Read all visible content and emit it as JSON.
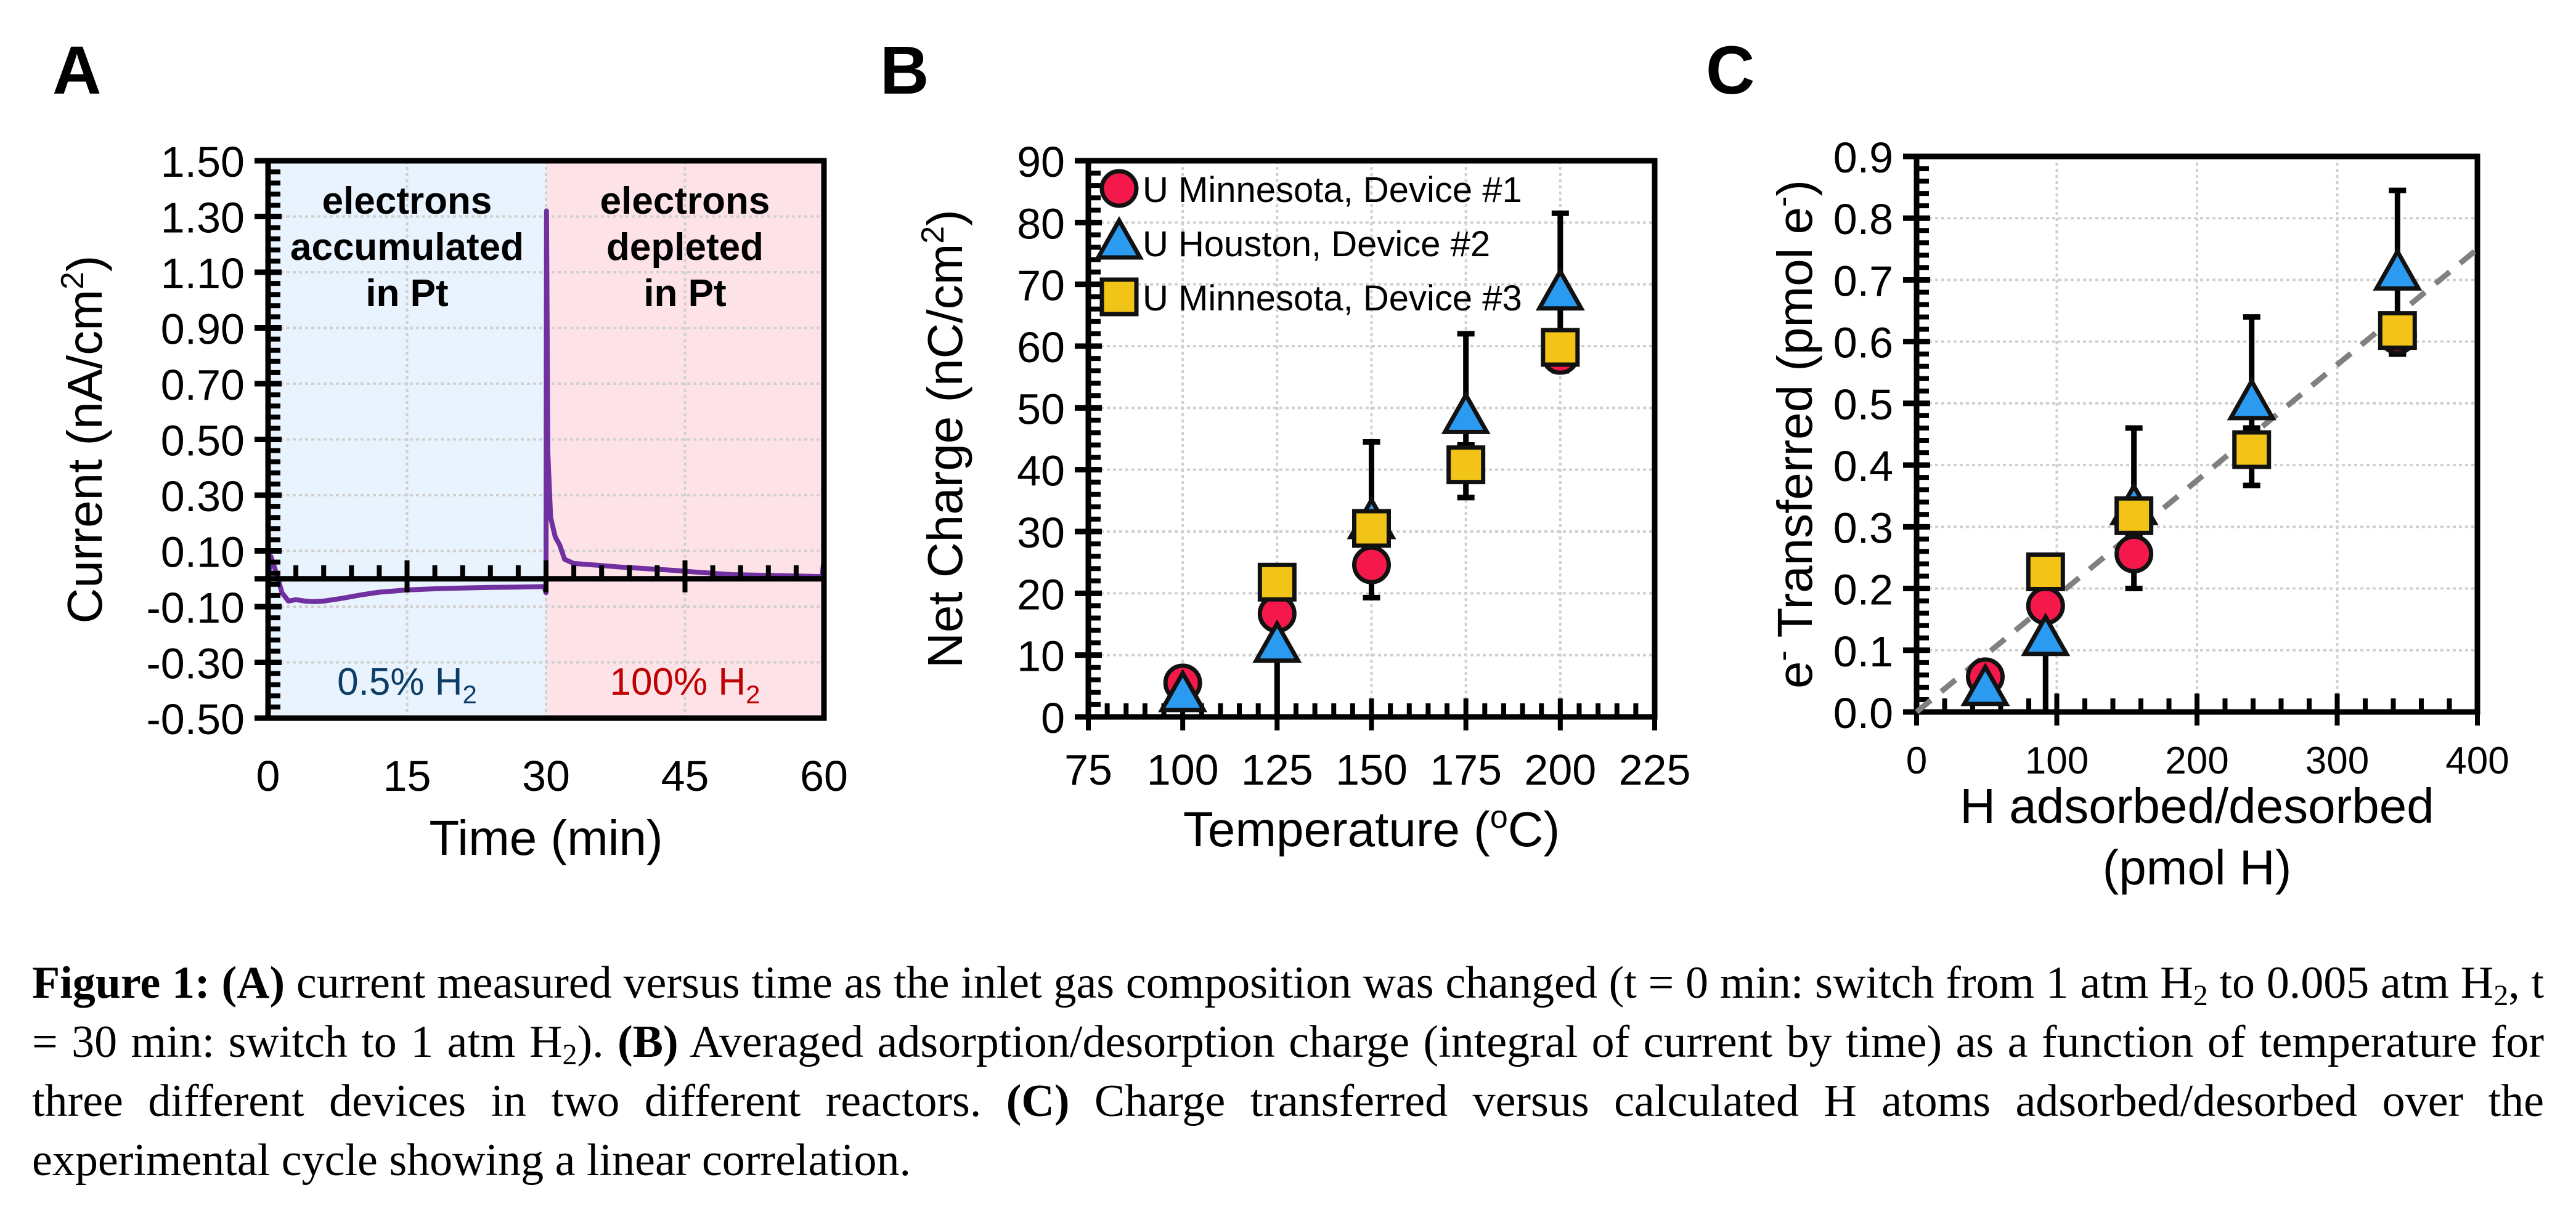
{
  "colors": {
    "device1": "#F5184A",
    "device2": "#2B9BF2",
    "device3": "#F2C418",
    "trace": "#7030A0",
    "region_low_h2": "#E8F3FD",
    "region_high_h2": "#FDE3E8",
    "label_low_h2": "#0B3D66",
    "label_high_h2": "#C00000",
    "fit_line": "#808080",
    "grid": "#D0D0D0"
  },
  "panels": {
    "a": {
      "letter": "A"
    },
    "b": {
      "letter": "B"
    },
    "c": {
      "letter": "C"
    }
  },
  "chart_data": [
    {
      "id": "A",
      "type": "line",
      "title": "",
      "xlabel": "Time (min)",
      "ylabel": "Current (nA/cm²)",
      "ylabel_main": "Current (nA/cm",
      "ylabel_sup": "2",
      "ylabel_end": ")",
      "xlim": [
        0,
        60
      ],
      "ylim": [
        -0.5,
        1.5
      ],
      "xticks": [
        0,
        15,
        30,
        45,
        60
      ],
      "xtick_labels": [
        "0",
        "15",
        "30",
        "45",
        "60"
      ],
      "yticks": [
        -0.5,
        -0.3,
        -0.1,
        0.1,
        0.3,
        0.5,
        0.7,
        0.9,
        1.1,
        1.3,
        1.5
      ],
      "ytick_labels": [
        "-0.50",
        "-0.30",
        "-0.10",
        "0.10",
        "0.30",
        "0.50",
        "0.70",
        "0.90",
        "1.10",
        "1.30",
        "1.50"
      ],
      "grid": true,
      "regions": [
        {
          "x": [
            0,
            30
          ],
          "top_label": [
            "electrons",
            "accumulated",
            "in Pt"
          ],
          "bottom_label": "0.5% H",
          "bottom_sub": "2"
        },
        {
          "x": [
            30,
            60
          ],
          "top_label": [
            "electrons",
            "depleted",
            "in Pt"
          ],
          "bottom_label": "100% H",
          "bottom_sub": "2"
        }
      ],
      "series": [
        {
          "name": "Current",
          "x": [
            0,
            0.3,
            0.8,
            1.5,
            2.2,
            3.0,
            4.0,
            5.0,
            6.0,
            8.0,
            10.0,
            12.0,
            15.0,
            18.0,
            21.0,
            24.0,
            27.0,
            29.8,
            30.0,
            30.05,
            30.2,
            30.5,
            31.0,
            31.5,
            32.0,
            33.0,
            35.0,
            38.0,
            41.0,
            44.0,
            47.0,
            50.0,
            54.0,
            57.0,
            59.8,
            60.0
          ],
          "y": [
            0.0,
            0.08,
            0.03,
            -0.05,
            -0.08,
            -0.075,
            -0.08,
            -0.082,
            -0.08,
            -0.07,
            -0.058,
            -0.048,
            -0.04,
            -0.036,
            -0.033,
            -0.031,
            -0.03,
            -0.028,
            -0.05,
            1.32,
            0.45,
            0.22,
            0.15,
            0.12,
            0.07,
            0.055,
            0.05,
            0.042,
            0.036,
            0.03,
            0.022,
            0.015,
            0.012,
            0.01,
            0.008,
            0.07
          ]
        }
      ]
    },
    {
      "id": "B",
      "type": "scatter",
      "title": "",
      "xlabel": "Temperature (°C)",
      "xlabel_main": "Temperature (",
      "xlabel_sup": "o",
      "xlabel_end": "C)",
      "ylabel": "Net Charge (nC/cm²)",
      "ylabel_main": "Net Charge (nC/cm",
      "ylabel_sup": "2",
      "ylabel_end": ")",
      "xlim": [
        75,
        225
      ],
      "ylim": [
        0,
        90
      ],
      "xticks": [
        75,
        100,
        125,
        150,
        175,
        200,
        225
      ],
      "xtick_labels": [
        "75",
        "100",
        "125",
        "150",
        "175",
        "200",
        "225"
      ],
      "yticks": [
        0,
        10,
        20,
        30,
        40,
        50,
        60,
        70,
        80,
        90
      ],
      "ytick_labels": [
        "0",
        "10",
        "20",
        "30",
        "40",
        "50",
        "60",
        "70",
        "80",
        "90"
      ],
      "grid": true,
      "legend_position": "top-left",
      "series": [
        {
          "name": "U Minnesota, Device #1",
          "marker": "circle",
          "color_key": "device1",
          "x": [
            100,
            125,
            150,
            200
          ],
          "y": [
            5.5,
            16.7,
            24.6,
            58.5
          ],
          "err_low": [
            4.5,
            14.8,
            19.3,
            56.0
          ],
          "err_high": [
            6.5,
            18.5,
            27.5,
            61.0
          ]
        },
        {
          "name": "U Houston, Device #2",
          "marker": "triangle",
          "color_key": "device2",
          "x": [
            100,
            125,
            150,
            175,
            200
          ],
          "y": [
            3.5,
            11.5,
            31.5,
            48.5,
            68.5
          ],
          "err_low": [
            2.0,
            0.0,
            28.0,
            44.0,
            62.0
          ],
          "err_high": [
            5.0,
            18.0,
            44.5,
            62.0,
            81.5
          ]
        },
        {
          "name": "U Minnesota, Device #3",
          "marker": "square",
          "color_key": "device3",
          "x": [
            125,
            150,
            175,
            200
          ],
          "y": [
            21.8,
            30.5,
            40.8,
            59.8
          ],
          "err_low": [
            19.5,
            27.5,
            35.5,
            57.0
          ],
          "err_high": [
            21.8,
            30.5,
            44.0,
            62.0
          ]
        }
      ]
    },
    {
      "id": "C",
      "type": "scatter",
      "title": "",
      "xlabel": "H adsorbed/desorbed (pmol H)",
      "xlabel_line1": "H adsorbed/desorbed",
      "xlabel_line2": "(pmol H)",
      "ylabel": "e⁻ Transferred (pmol e⁻)",
      "ylabel_a": "e",
      "ylabel_b": " Transferred (pmol e",
      "ylabel_c": ")",
      "ylabel_sup": "-",
      "xlim": [
        0,
        400
      ],
      "ylim": [
        0,
        0.9
      ],
      "xticks": [
        0,
        100,
        200,
        300,
        400
      ],
      "xtick_labels": [
        "0",
        "100",
        "200",
        "300",
        "400"
      ],
      "yticks": [
        0,
        0.1,
        0.2,
        0.3,
        0.4,
        0.5,
        0.6,
        0.7,
        0.8,
        0.9
      ],
      "ytick_labels": [
        "0.0",
        "0.1",
        "0.2",
        "0.3",
        "0.4",
        "0.5",
        "0.6",
        "0.7",
        "0.8",
        "0.9"
      ],
      "grid": true,
      "fit_line": {
        "style": "dashed",
        "x": [
          0,
          400
        ],
        "y": [
          0,
          0.75
        ]
      },
      "series": [
        {
          "name": "U Minnesota, Device #1",
          "marker": "circle",
          "color_key": "device1",
          "x": [
            49,
            92,
            155,
            343
          ],
          "y": [
            0.057,
            0.172,
            0.256,
            0.61
          ],
          "err_low": [
            0.045,
            0.155,
            0.2,
            0.58
          ],
          "err_high": [
            0.065,
            0.19,
            0.285,
            0.64
          ]
        },
        {
          "name": "U Houston, Device #2",
          "marker": "triangle",
          "color_key": "device2",
          "x": [
            49,
            92,
            155,
            239,
            343
          ],
          "y": [
            0.037,
            0.118,
            0.33,
            0.5,
            0.71
          ],
          "err_low": [
            0.015,
            0.0,
            0.3,
            0.45,
            0.64
          ],
          "err_high": [
            0.05,
            0.19,
            0.46,
            0.64,
            0.845
          ]
        },
        {
          "name": "U Minnesota, Device #3",
          "marker": "square",
          "color_key": "device3",
          "x": [
            92,
            155,
            239,
            343
          ],
          "y": [
            0.227,
            0.318,
            0.425,
            0.618
          ],
          "err_low": [
            0.2,
            0.3,
            0.367,
            0.58
          ],
          "err_high": [
            0.227,
            0.318,
            0.46,
            0.64
          ]
        }
      ]
    }
  ],
  "caption": {
    "fig_label": "Figure 1:",
    "a_label": "(A)",
    "a_text_1": " current measured versus time as the inlet gas composition was changed (t = 0 min: switch from 1 atm H",
    "a_sub_1": "2",
    "a_text_2": " to 0.005 atm H",
    "a_sub_2": "2",
    "a_text_3": ", t = 30 min: switch to 1 atm H",
    "a_sub_3": "2",
    "a_text_4": "). ",
    "b_label": "(B)",
    "b_text": " Averaged adsorption/desorption charge (integral of current by time) as a function of temperature for three different devices in two different reactors. ",
    "c_label": "(C)",
    "c_text": " Charge transferred versus calculated H atoms adsorbed/desorbed over the experimental cycle showing a linear correlation."
  }
}
